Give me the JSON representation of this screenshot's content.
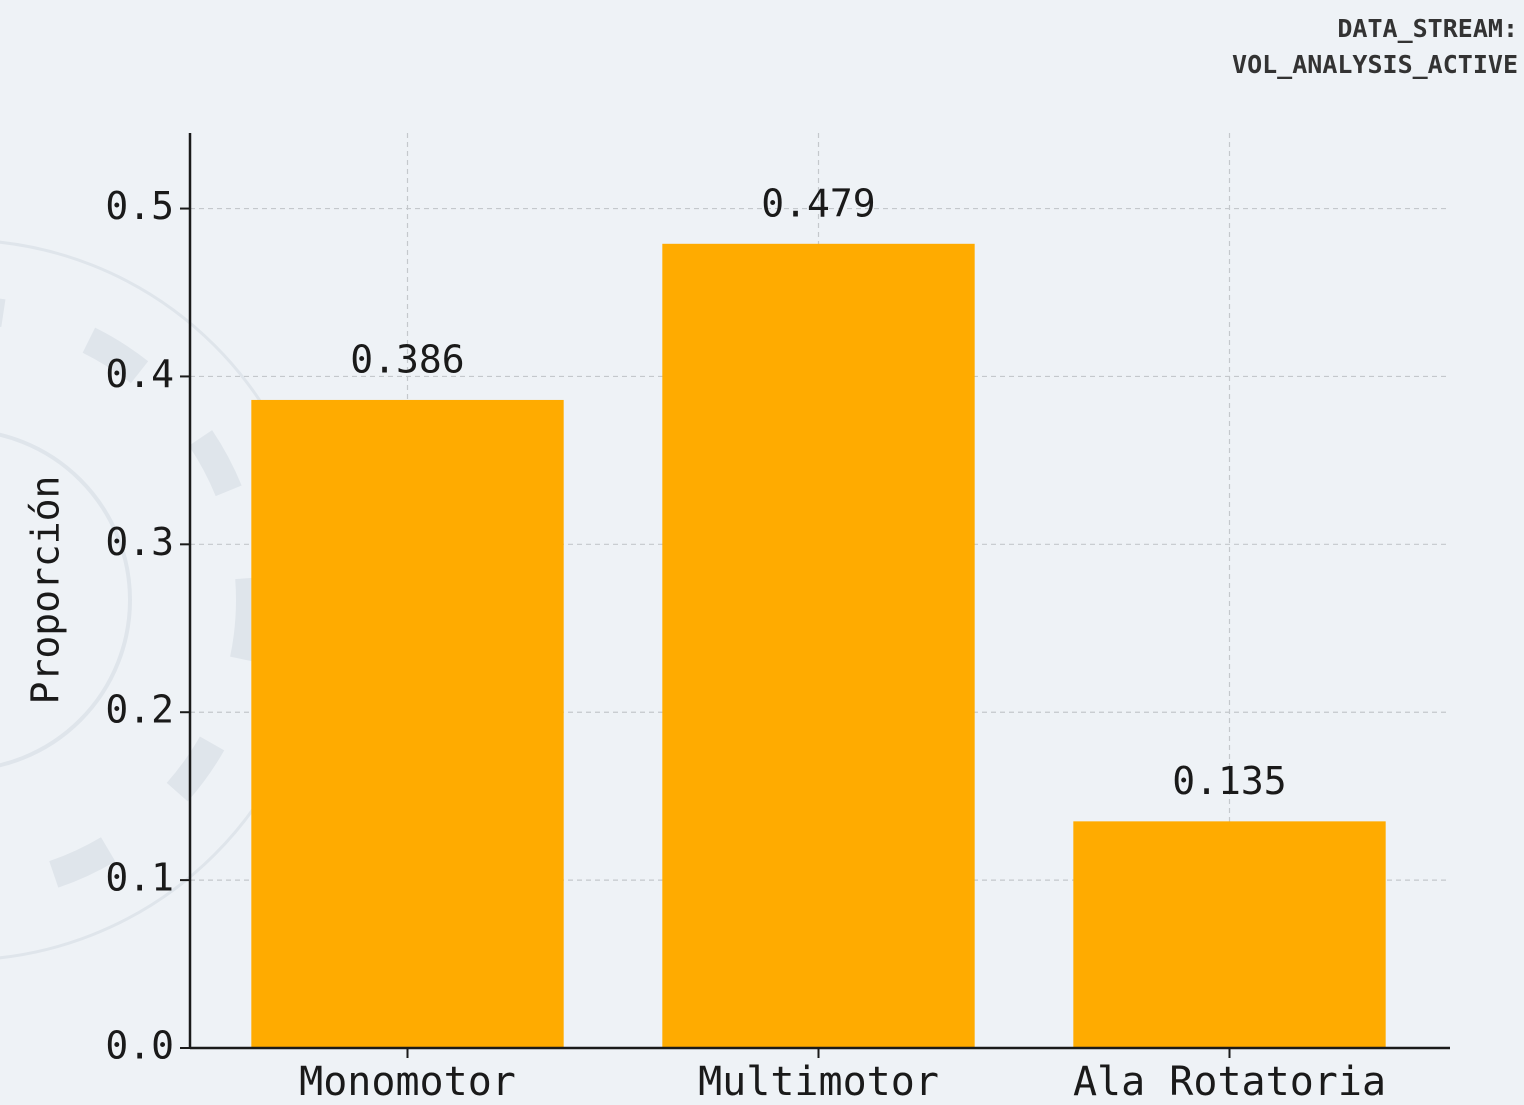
{
  "chart_data": {
    "type": "bar",
    "annotations": [
      "DATA_STREAM:",
      "VOL_ANALYSIS_ACTIVE"
    ],
    "y_label": "Proporción",
    "categories": [
      "Monomotor",
      "Multimotor",
      "Ala Rotatoria"
    ],
    "values": [
      0.386,
      0.479,
      0.135
    ],
    "color": "#ffab00",
    "ylim": [
      0,
      0.545
    ],
    "yticks": [
      {
        "value": 0,
        "label": "0.0"
      },
      0.1,
      0.2,
      0.3,
      0.4,
      0.5
    ],
    "grid": true
  }
}
